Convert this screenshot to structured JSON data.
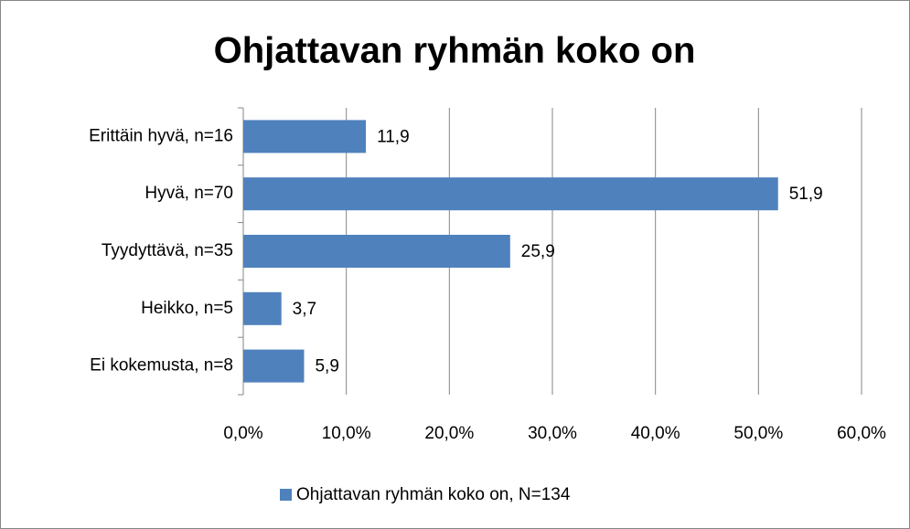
{
  "chart_data": {
    "type": "bar",
    "orientation": "horizontal",
    "title": "Ohjattavan ryhmän koko on",
    "categories": [
      "Erittäin hyvä, n=16",
      "Hyvä, n=70",
      "Tyydyttävä, n=35",
      "Heikko, n=5",
      "Ei kokemusta, n=8"
    ],
    "series": [
      {
        "name": "Ohjattavan ryhmän koko on, N=134",
        "color": "#4f81bd",
        "values": [
          11.9,
          51.9,
          25.9,
          3.7,
          5.9
        ],
        "value_labels": [
          "11,9",
          "51,9",
          "25,9",
          "3,7",
          "5,9"
        ]
      }
    ],
    "xlim": [
      0,
      60
    ],
    "xticks": [
      {
        "value": 0,
        "label": "0,0%"
      },
      {
        "value": 10,
        "label": "10,0%"
      },
      {
        "value": 20,
        "label": "20,0%"
      },
      {
        "value": 30,
        "label": "30,0%"
      },
      {
        "value": 40,
        "label": "40,0%"
      },
      {
        "value": 50,
        "label": "50,0%"
      },
      {
        "value": 60,
        "label": "60,0%"
      }
    ],
    "grid": true,
    "legend": "bottom"
  }
}
